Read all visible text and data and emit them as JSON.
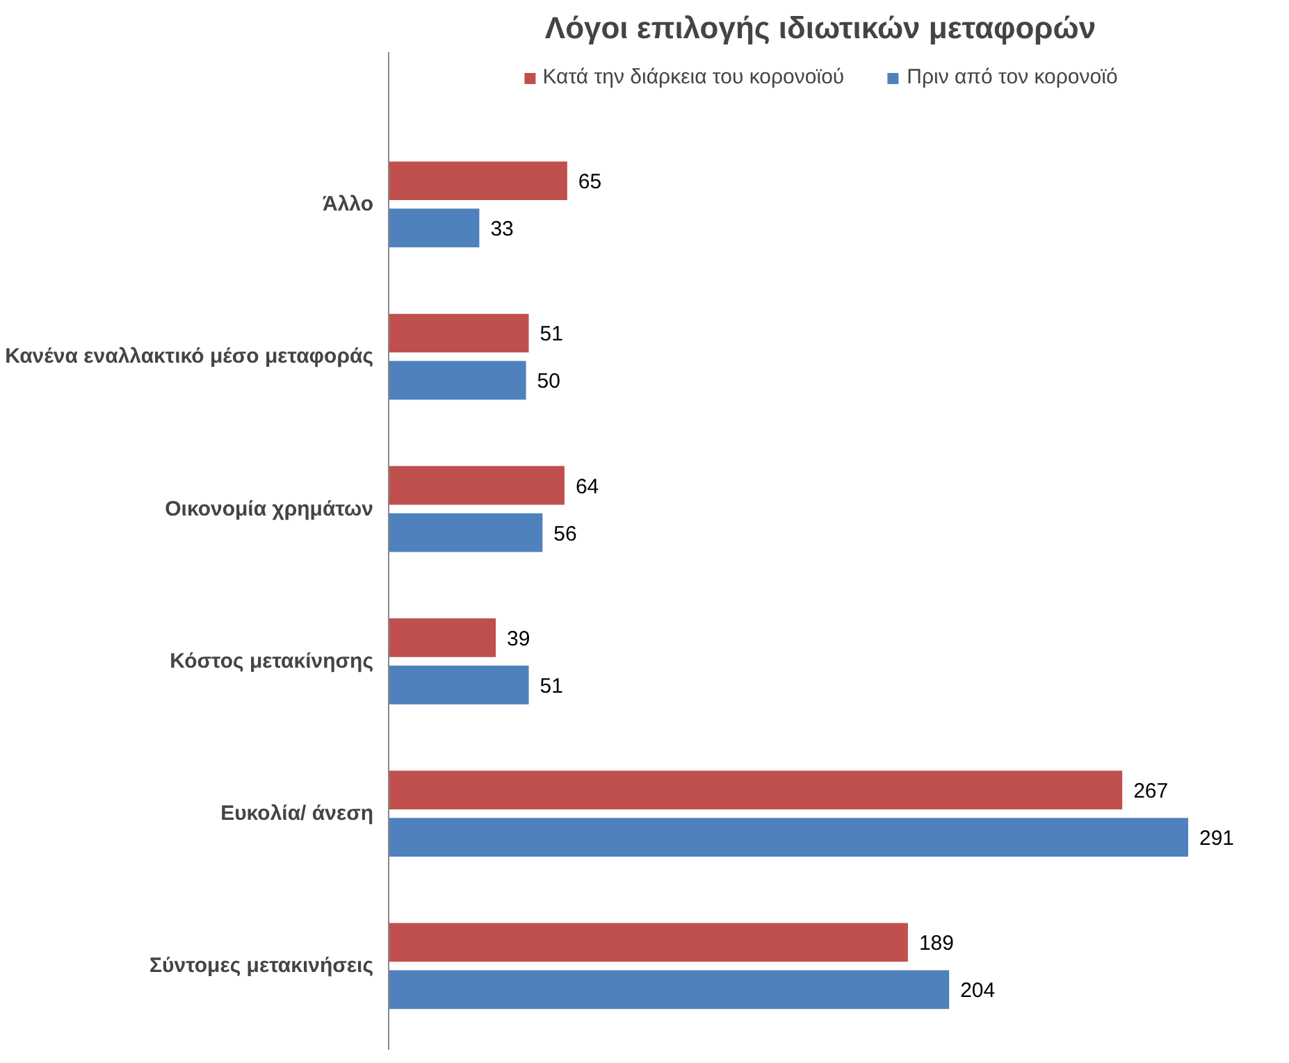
{
  "chart_data": {
    "type": "bar",
    "orientation": "horizontal",
    "title": "Λόγοι επιλογής ιδιωτικών μεταφορών",
    "categories": [
      "Άλλο",
      "Κανένα εναλλακτικό μέσο μεταφοράς",
      "Οικονομία χρημάτων",
      "Κόστος μετακίνησης",
      "Ευκολία/ άνεση",
      "Σύντομες μετακινήσεις"
    ],
    "series": [
      {
        "name": "Κατά την διάρκεια του κορονοϊού",
        "color": "#c0504d",
        "values": [
          65,
          51,
          64,
          39,
          267,
          189
        ]
      },
      {
        "name": "Πριν από τον κορονοϊό",
        "color": "#4f81bd",
        "values": [
          33,
          50,
          56,
          51,
          291,
          204
        ]
      }
    ],
    "data_labels": true,
    "legend": "top",
    "grid": false
  }
}
